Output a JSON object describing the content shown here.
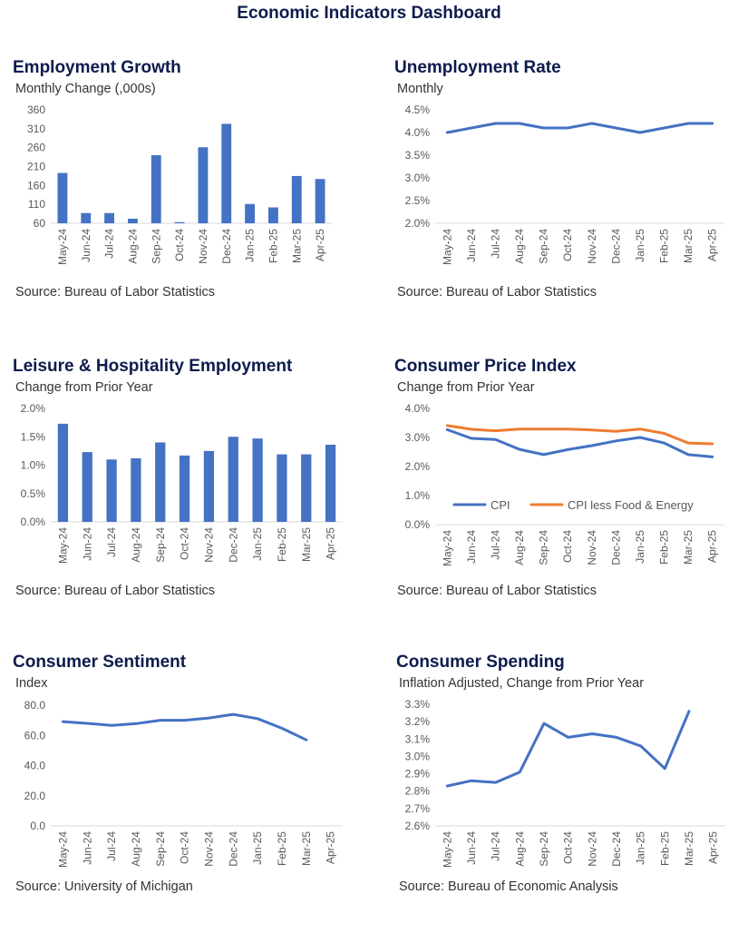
{
  "page_title": "Economic Indicators Dashboard",
  "colors": {
    "title": "#0d1b4c",
    "series_blue": "#4472c4",
    "series_orange": "#ed7d31",
    "axis": "#d9d9d9",
    "text": "#595959"
  },
  "months": [
    "May-24",
    "Jun-24",
    "Jul-24",
    "Aug-24",
    "Sep-24",
    "Oct-24",
    "Nov-24",
    "Dec-24",
    "Jan-25",
    "Feb-25",
    "Mar-25",
    "Apr-25"
  ],
  "panels": {
    "employment": {
      "title": "Employment Growth",
      "subtitle": "Monthly Change (,000s)",
      "source": "Source: Bureau of Labor Statistics"
    },
    "unemployment": {
      "title": "Unemployment Rate",
      "subtitle": "Monthly",
      "source": "Source: Bureau of Labor Statistics"
    },
    "leisure": {
      "title": "Leisure & Hospitality Employment",
      "subtitle": "Change from Prior Year",
      "source": "Source: Bureau of Labor Statistics"
    },
    "cpi": {
      "title": "Consumer Price Index",
      "subtitle": "Change from Prior Year",
      "source": "Source: Bureau of Labor Statistics"
    },
    "sentiment": {
      "title": "Consumer Sentiment",
      "subtitle": "Index",
      "source": "Source: University of Michigan"
    },
    "spending": {
      "title": "Consumer Spending",
      "subtitle": "Inflation Adjusted, Change from Prior Year",
      "source": "Source: Bureau of Economic Analysis"
    }
  },
  "chart_data": [
    {
      "id": "employment",
      "type": "bar",
      "categories": [
        "May-24",
        "Jun-24",
        "Jul-24",
        "Aug-24",
        "Sep-24",
        "Oct-24",
        "Nov-24",
        "Dec-24",
        "Jan-25",
        "Feb-25",
        "Mar-25",
        "Apr-25"
      ],
      "series": [
        {
          "values": [
            193,
            87,
            87,
            72,
            240,
            63,
            261,
            323,
            111,
            102,
            185,
            177
          ]
        }
      ],
      "ylim": [
        60,
        360
      ],
      "yticks": [
        60,
        110,
        160,
        210,
        260,
        310,
        360
      ],
      "ytick_labels": [
        "60",
        "110",
        "160",
        "210",
        "260",
        "310",
        "360"
      ],
      "grid": false,
      "legend": "none"
    },
    {
      "id": "unemployment",
      "type": "line",
      "categories": [
        "May-24",
        "Jun-24",
        "Jul-24",
        "Aug-24",
        "Sep-24",
        "Oct-24",
        "Nov-24",
        "Dec-24",
        "Jan-25",
        "Feb-25",
        "Mar-25",
        "Apr-25"
      ],
      "series": [
        {
          "values": [
            4.0,
            4.1,
            4.2,
            4.2,
            4.1,
            4.1,
            4.2,
            4.1,
            4.0,
            4.1,
            4.2,
            4.2
          ]
        }
      ],
      "ylim": [
        2.0,
        4.5
      ],
      "yticks": [
        2.0,
        2.5,
        3.0,
        3.5,
        4.0,
        4.5
      ],
      "ytick_labels": [
        "2.0%",
        "2.5%",
        "3.0%",
        "3.5%",
        "4.0%",
        "4.5%"
      ],
      "grid": false,
      "legend": "none"
    },
    {
      "id": "leisure",
      "type": "bar",
      "categories": [
        "May-24",
        "Jun-24",
        "Jul-24",
        "Aug-24",
        "Sep-24",
        "Oct-24",
        "Nov-24",
        "Dec-24",
        "Jan-25",
        "Feb-25",
        "Mar-25",
        "Apr-25"
      ],
      "series": [
        {
          "values": [
            1.73,
            1.23,
            1.1,
            1.12,
            1.4,
            1.17,
            1.25,
            1.5,
            1.47,
            1.19,
            1.19,
            1.36
          ]
        }
      ],
      "ylim": [
        0,
        2.0
      ],
      "yticks": [
        0,
        0.5,
        1.0,
        1.5,
        2.0
      ],
      "ytick_labels": [
        "0.0%",
        "0.5%",
        "1.0%",
        "1.5%",
        "2.0%"
      ],
      "grid": false,
      "legend": "none"
    },
    {
      "id": "cpi",
      "type": "line",
      "categories": [
        "May-24",
        "Jun-24",
        "Jul-24",
        "Aug-24",
        "Sep-24",
        "Oct-24",
        "Nov-24",
        "Dec-24",
        "Jan-25",
        "Feb-25",
        "Mar-25",
        "Apr-25"
      ],
      "series": [
        {
          "name": "CPI",
          "values": [
            3.27,
            2.97,
            2.93,
            2.59,
            2.41,
            2.58,
            2.72,
            2.88,
            3.0,
            2.81,
            2.41,
            2.33
          ]
        },
        {
          "name": "CPI less Food & Energy",
          "values": [
            3.41,
            3.28,
            3.23,
            3.29,
            3.29,
            3.29,
            3.26,
            3.21,
            3.29,
            3.14,
            2.81,
            2.78
          ]
        }
      ],
      "ylim": [
        0,
        4.0
      ],
      "yticks": [
        0,
        1.0,
        2.0,
        3.0,
        4.0
      ],
      "ytick_labels": [
        "0.0%",
        "1.0%",
        "2.0%",
        "3.0%",
        "4.0%"
      ],
      "grid": false,
      "legend": "center"
    },
    {
      "id": "sentiment",
      "type": "line",
      "categories": [
        "May-24",
        "Jun-24",
        "Jul-24",
        "Aug-24",
        "Sep-24",
        "Oct-24",
        "Nov-24",
        "Dec-24",
        "Jan-25",
        "Feb-25",
        "Mar-25",
        "Apr-25"
      ],
      "series": [
        {
          "values": [
            69.1,
            68.0,
            66.6,
            67.8,
            70.0,
            70.0,
            71.5,
            73.9,
            71.1,
            64.7,
            57.0,
            null
          ]
        }
      ],
      "ylim": [
        0,
        80
      ],
      "yticks": [
        0,
        20,
        40,
        60,
        80
      ],
      "ytick_labels": [
        "0.0",
        "20.0",
        "40.0",
        "60.0",
        "80.0"
      ],
      "grid": false,
      "legend": "none"
    },
    {
      "id": "spending",
      "type": "line",
      "categories": [
        "May-24",
        "Jun-24",
        "Jul-24",
        "Aug-24",
        "Sep-24",
        "Oct-24",
        "Nov-24",
        "Dec-24",
        "Jan-25",
        "Feb-25",
        "Mar-25",
        "Apr-25"
      ],
      "series": [
        {
          "values": [
            2.83,
            2.86,
            2.85,
            2.91,
            3.19,
            3.11,
            3.13,
            3.11,
            3.06,
            2.93,
            3.26,
            null
          ]
        }
      ],
      "ylim": [
        2.6,
        3.3
      ],
      "yticks": [
        2.6,
        2.7,
        2.8,
        2.9,
        3.0,
        3.1,
        3.2,
        3.3
      ],
      "ytick_labels": [
        "2.6%",
        "2.7%",
        "2.8%",
        "2.9%",
        "3.0%",
        "3.1%",
        "3.2%",
        "3.3%"
      ],
      "grid": false,
      "legend": "none"
    }
  ]
}
